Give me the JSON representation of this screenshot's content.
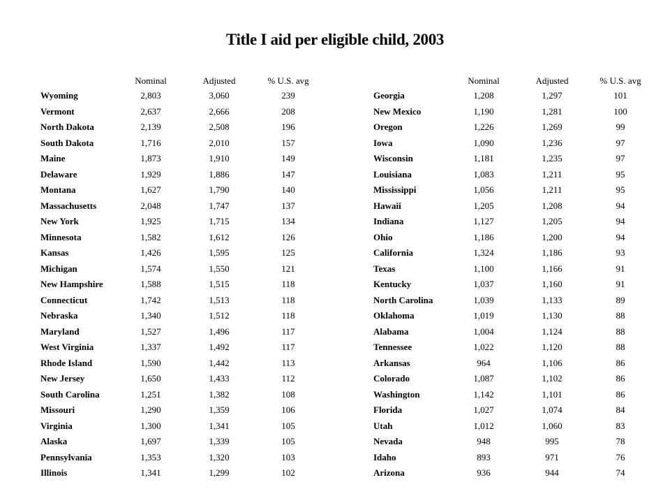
{
  "title": "Title I aid per eligible child, 2003",
  "columns": [
    "Nominal",
    "Adjusted",
    "% U.S. avg"
  ],
  "left_table": [
    [
      "Wyoming",
      "2,803",
      "3,060",
      "239"
    ],
    [
      "Vermont",
      "2,637",
      "2,666",
      "208"
    ],
    [
      "North Dakota",
      "2,139",
      "2,508",
      "196"
    ],
    [
      "South Dakota",
      "1,716",
      "2,010",
      "157"
    ],
    [
      "Maine",
      "1,873",
      "1,910",
      "149"
    ],
    [
      "Delaware",
      "1,929",
      "1,886",
      "147"
    ],
    [
      "Montana",
      "1,627",
      "1,790",
      "140"
    ],
    [
      "Massachusetts",
      "2,048",
      "1,747",
      "137"
    ],
    [
      "New York",
      "1,925",
      "1,715",
      "134"
    ],
    [
      "Minnesota",
      "1,582",
      "1,612",
      "126"
    ],
    [
      "Kansas",
      "1,426",
      "1,595",
      "125"
    ],
    [
      "Michigan",
      "1,574",
      "1,550",
      "121"
    ],
    [
      "New Hampshire",
      "1,588",
      "1,515",
      "118"
    ],
    [
      "Connecticut",
      "1,742",
      "1,513",
      "118"
    ],
    [
      "Nebraska",
      "1,340",
      "1,512",
      "118"
    ],
    [
      "Maryland",
      "1,527",
      "1,496",
      "117"
    ],
    [
      "West Virginia",
      "1,337",
      "1,492",
      "117"
    ],
    [
      "Rhode Island",
      "1,590",
      "1,442",
      "113"
    ],
    [
      "New Jersey",
      "1,650",
      "1,433",
      "112"
    ],
    [
      "South Carolina",
      "1,251",
      "1,382",
      "108"
    ],
    [
      "Missouri",
      "1,290",
      "1,359",
      "106"
    ],
    [
      "Virginia",
      "1,300",
      "1,341",
      "105"
    ],
    [
      "Alaska",
      "1,697",
      "1,339",
      "105"
    ],
    [
      "Pennsylvania",
      "1,353",
      "1,320",
      "103"
    ],
    [
      "Illinois",
      "1,341",
      "1,299",
      "102"
    ]
  ],
  "right_table": [
    [
      "Georgia",
      "1,208",
      "1,297",
      "101"
    ],
    [
      "New Mexico",
      "1,190",
      "1,281",
      "100"
    ],
    [
      "Oregon",
      "1,226",
      "1,269",
      "99"
    ],
    [
      "Iowa",
      "1,090",
      "1,236",
      "97"
    ],
    [
      "Wisconsin",
      "1,181",
      "1,235",
      "97"
    ],
    [
      "Louisiana",
      "1,083",
      "1,211",
      "95"
    ],
    [
      "Mississippi",
      "1,056",
      "1,211",
      "95"
    ],
    [
      "Hawaii",
      "1,205",
      "1,208",
      "94"
    ],
    [
      "Indiana",
      "1,127",
      "1,205",
      "94"
    ],
    [
      "Ohio",
      "1,186",
      "1,200",
      "94"
    ],
    [
      "California",
      "1,324",
      "1,186",
      "93"
    ],
    [
      "Texas",
      "1,100",
      "1,166",
      "91"
    ],
    [
      "Kentucky",
      "1,037",
      "1,160",
      "91"
    ],
    [
      "North Carolina",
      "1,039",
      "1,133",
      "89"
    ],
    [
      "Oklahoma",
      "1,019",
      "1,130",
      "88"
    ],
    [
      "Alabama",
      "1,004",
      "1,124",
      "88"
    ],
    [
      "Tennessee",
      "1,022",
      "1,120",
      "88"
    ],
    [
      "Arkansas",
      "964",
      "1,106",
      "86"
    ],
    [
      "Colorado",
      "1,087",
      "1,102",
      "86"
    ],
    [
      "Washington",
      "1,142",
      "1,101",
      "86"
    ],
    [
      "Florida",
      "1,027",
      "1,074",
      "84"
    ],
    [
      "Utah",
      "1,012",
      "1,060",
      "83"
    ],
    [
      "Nevada",
      "948",
      "995",
      "78"
    ],
    [
      "Idaho",
      "893",
      "971",
      "76"
    ],
    [
      "Arizona",
      "936",
      "944",
      "74"
    ]
  ]
}
